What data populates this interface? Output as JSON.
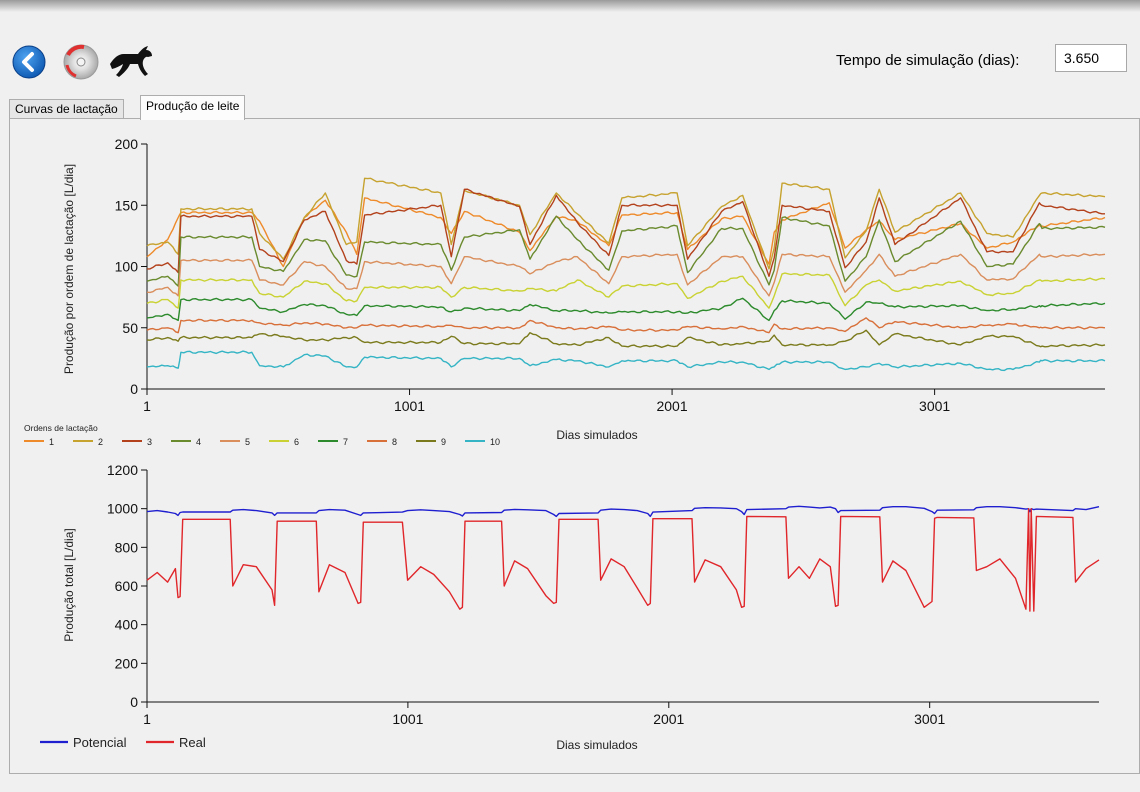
{
  "toolbar": {
    "back_icon": "back-arrow-icon",
    "disc_icon": "disc-icon",
    "horse_icon": "horse-icon"
  },
  "simulation": {
    "label": "Tempo de simulação (dias):",
    "value": "3.650"
  },
  "tabs": [
    {
      "label": "Curvas de lactação",
      "active": false
    },
    {
      "label": "Produção de leite",
      "active": true
    }
  ],
  "colors": {
    "potencial": "#1f1fd0",
    "real": "#e0262a",
    "series": [
      "#ee8a2a",
      "#c6a22e",
      "#b3421c",
      "#6a8a2e",
      "#d98e5c",
      "#c9d232",
      "#2c8a2c",
      "#d8703a",
      "#7a7a1c",
      "#34b4c4"
    ]
  },
  "chart_data": [
    {
      "type": "line",
      "title": "",
      "xlabel": "Dias simulados",
      "ylabel": "Produção por ordem de lactação [L/dia]",
      "xlim": [
        1,
        3650
      ],
      "ylim": [
        0,
        200
      ],
      "x_ticks": [
        "1",
        "1001",
        "2001",
        "3001"
      ],
      "y_ticks": [
        "0",
        "50",
        "100",
        "150",
        "200"
      ],
      "legend_title": "Ordens de lactação",
      "legend_position": "bottom-left",
      "cycle_days": 365,
      "x": [
        1,
        80,
        120,
        130,
        400,
        430,
        520,
        600,
        680,
        760,
        800,
        830,
        1120,
        1160,
        1210,
        1420,
        1460,
        1560,
        1640,
        1760,
        1810,
        2020,
        2060,
        2190,
        2270,
        2370,
        2390,
        2420,
        2600,
        2660,
        2740,
        2790,
        2850,
        3100,
        3200,
        3300,
        3400,
        3410,
        3650
      ],
      "series": [
        {
          "name": "1",
          "values": [
            108,
            122,
            140,
            144,
            144,
            137,
            100,
            140,
            154,
            128,
            110,
            156,
            140,
            127,
            145,
            128,
            113,
            141,
            137,
            117,
            142,
            144,
            114,
            139,
            141,
            102,
            128,
            138,
            152,
            115,
            130,
            137,
            122,
            135,
            115,
            120,
            134,
            133,
            140
          ]
        },
        {
          "name": "2",
          "values": [
            117,
            120,
            110,
            147,
            147,
            127,
            106,
            140,
            160,
            118,
            120,
            172,
            160,
            118,
            162,
            150,
            126,
            160,
            143,
            119,
            156,
            160,
            117,
            149,
            158,
            98,
            115,
            168,
            163,
            107,
            129,
            163,
            128,
            160,
            127,
            124,
            158,
            160,
            157
          ]
        },
        {
          "name": "3",
          "values": [
            98,
            103,
            95,
            141,
            141,
            114,
            104,
            138,
            145,
            105,
            102,
            142,
            150,
            108,
            163,
            149,
            118,
            158,
            136,
            109,
            150,
            150,
            106,
            145,
            153,
            92,
            107,
            150,
            145,
            99,
            120,
            156,
            118,
            156,
            112,
            112,
            152,
            150,
            143
          ]
        },
        {
          "name": "4",
          "values": [
            88,
            92,
            84,
            124,
            124,
            100,
            96,
            122,
            121,
            93,
            92,
            120,
            118,
            97,
            124,
            130,
            106,
            141,
            122,
            97,
            129,
            133,
            95,
            131,
            131,
            85,
            97,
            140,
            133,
            88,
            108,
            138,
            104,
            137,
            100,
            102,
            135,
            131,
            132
          ]
        },
        {
          "name": "5",
          "values": [
            79,
            83,
            76,
            105,
            105,
            89,
            85,
            104,
            100,
            82,
            82,
            104,
            100,
            86,
            108,
            100,
            94,
            104,
            108,
            86,
            108,
            110,
            85,
            108,
            108,
            76,
            87,
            110,
            108,
            79,
            97,
            110,
            92,
            110,
            89,
            90,
            110,
            108,
            110
          ]
        },
        {
          "name": "6",
          "values": [
            70,
            73,
            66,
            89,
            89,
            78,
            75,
            88,
            86,
            72,
            72,
            83,
            83,
            75,
            83,
            80,
            82,
            80,
            89,
            75,
            84,
            86,
            74,
            88,
            92,
            66,
            76,
            94,
            93,
            68,
            85,
            89,
            80,
            88,
            77,
            78,
            89,
            88,
            90
          ]
        },
        {
          "name": "7",
          "values": [
            58,
            61,
            56,
            73,
            73,
            66,
            63,
            69,
            68,
            61,
            60,
            68,
            67,
            63,
            66,
            64,
            69,
            64,
            64,
            62,
            63,
            63,
            62,
            66,
            74,
            56,
            64,
            72,
            70,
            57,
            71,
            70,
            67,
            68,
            64,
            65,
            68,
            68,
            70
          ]
        },
        {
          "name": "8",
          "values": [
            48,
            50,
            46,
            56,
            56,
            54,
            52,
            54,
            53,
            50,
            50,
            52,
            51,
            52,
            50,
            50,
            56,
            50,
            49,
            51,
            48,
            48,
            51,
            49,
            51,
            46,
            53,
            49,
            50,
            47,
            58,
            50,
            55,
            50,
            52,
            53,
            50,
            50,
            50
          ]
        },
        {
          "name": "9",
          "values": [
            40,
            42,
            39,
            42,
            42,
            45,
            43,
            40,
            40,
            42,
            42,
            38,
            38,
            43,
            37,
            37,
            46,
            37,
            36,
            42,
            35,
            35,
            42,
            36,
            37,
            39,
            44,
            36,
            36,
            39,
            48,
            36,
            45,
            36,
            43,
            43,
            35,
            35,
            36
          ]
        },
        {
          "name": "10",
          "values": [
            18,
            19,
            17,
            30,
            30,
            19,
            18,
            28,
            27,
            18,
            18,
            26,
            25,
            18,
            25,
            25,
            19,
            24,
            23,
            18,
            23,
            23,
            18,
            22,
            22,
            16,
            18,
            22,
            22,
            16,
            18,
            21,
            18,
            21,
            16,
            16,
            22,
            23,
            23
          ]
        }
      ]
    },
    {
      "type": "line",
      "title": "",
      "xlabel": "Dias simulados",
      "ylabel": "Produção total [L/dia]",
      "xlim": [
        1,
        3650
      ],
      "ylim": [
        0,
        1200
      ],
      "x_ticks": [
        "1",
        "1001",
        "2001",
        "3001"
      ],
      "y_ticks": [
        "0",
        "200",
        "400",
        "600",
        "800",
        "1000",
        "1200"
      ],
      "legend_position": "bottom-left",
      "x": [
        1,
        40,
        80,
        110,
        120,
        128,
        138,
        320,
        330,
        370,
        420,
        480,
        490,
        500,
        650,
        660,
        700,
        760,
        810,
        820,
        830,
        980,
        1000,
        1050,
        1100,
        1160,
        1200,
        1210,
        1220,
        1360,
        1370,
        1410,
        1460,
        1530,
        1560,
        1570,
        1580,
        1730,
        1740,
        1780,
        1830,
        1880,
        1920,
        1930,
        1940,
        2090,
        2100,
        2140,
        2200,
        2260,
        2280,
        2290,
        2300,
        2450,
        2460,
        2500,
        2540,
        2580,
        2620,
        2640,
        2650,
        2660,
        2810,
        2820,
        2860,
        2910,
        2980,
        3010,
        3020,
        3030,
        3170,
        3180,
        3220,
        3270,
        3330,
        3370,
        3380,
        3385,
        3390,
        3400,
        3410,
        3550,
        3560,
        3600,
        3650
      ],
      "series": [
        {
          "name": "Potencial",
          "values": [
            985,
            990,
            983,
            975,
            965,
            980,
            983,
            983,
            992,
            995,
            990,
            978,
            965,
            978,
            978,
            990,
            995,
            992,
            970,
            965,
            978,
            982,
            990,
            994,
            990,
            985,
            970,
            962,
            978,
            980,
            992,
            996,
            994,
            990,
            970,
            960,
            975,
            978,
            992,
            998,
            995,
            990,
            975,
            960,
            982,
            990,
            1002,
            1005,
            1004,
            1000,
            985,
            970,
            995,
            1000,
            1008,
            1012,
            1008,
            1004,
            1008,
            1000,
            980,
            990,
            992,
            1005,
            1010,
            1010,
            1002,
            985,
            975,
            992,
            994,
            1005,
            1010,
            1010,
            1005,
            998,
            1000,
            985,
            1000,
            995,
            998,
            990,
            1000,
            995,
            1010
          ]
        },
        {
          "name": "Real",
          "values": [
            630,
            670,
            620,
            690,
            540,
            545,
            945,
            945,
            600,
            710,
            700,
            580,
            500,
            935,
            935,
            570,
            710,
            670,
            510,
            515,
            930,
            930,
            630,
            700,
            660,
            570,
            480,
            490,
            935,
            935,
            600,
            730,
            690,
            550,
            510,
            515,
            945,
            945,
            630,
            740,
            700,
            590,
            500,
            510,
            948,
            948,
            620,
            735,
            700,
            580,
            490,
            495,
            960,
            958,
            640,
            700,
            640,
            740,
            700,
            495,
            500,
            960,
            958,
            620,
            730,
            680,
            490,
            520,
            950,
            955,
            952,
            680,
            700,
            740,
            640,
            480,
            1000,
            470,
            1000,
            470,
            960,
            955,
            620,
            690,
            735
          ]
        }
      ]
    }
  ]
}
